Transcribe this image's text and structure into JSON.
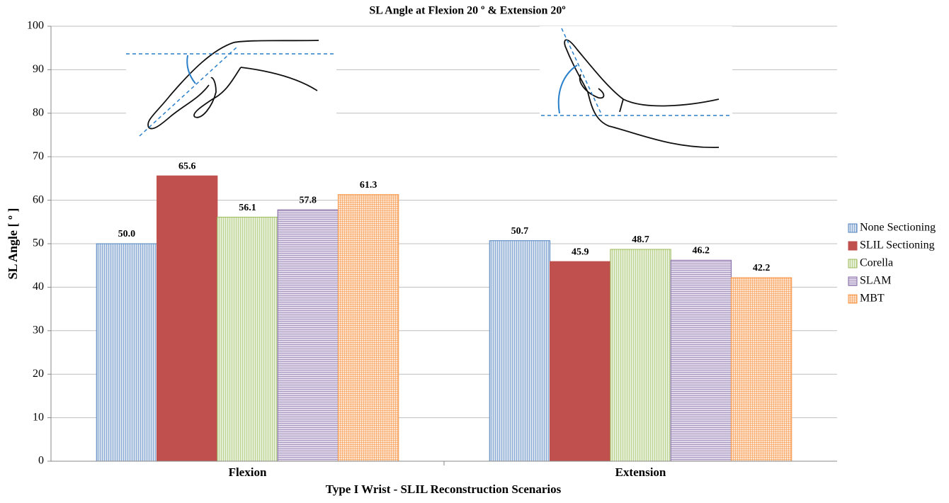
{
  "chart_data": {
    "type": "bar",
    "title": "SL Angle at Flexion 20 º & Extension 20º",
    "x_label": "Type I Wrist - SLIL Reconstruction Scenarios",
    "y_label": "SL Angle [ º ]",
    "categories": [
      "Flexion",
      "Extension"
    ],
    "series": [
      {
        "name": "None Sectioning",
        "color": "#4f81bd",
        "pattern": "vertical",
        "values": [
          50.0,
          50.7
        ],
        "value_labels": [
          "50.0",
          "50.7"
        ]
      },
      {
        "name": "SLIL Sectioning",
        "color": "#c0504d",
        "pattern": "solid",
        "values": [
          65.6,
          45.9
        ],
        "value_labels": [
          "65.6",
          "45.9"
        ]
      },
      {
        "name": "Corella",
        "color": "#9bbb59",
        "pattern": "vertical",
        "values": [
          56.1,
          48.7
        ],
        "value_labels": [
          "56.1",
          "48.7"
        ]
      },
      {
        "name": "SLAM",
        "color": "#8064a2",
        "pattern": "horizontal",
        "values": [
          57.8,
          46.2
        ],
        "value_labels": [
          "57.8",
          "46.2"
        ]
      },
      {
        "name": "MBT",
        "color": "#f79646",
        "pattern": "cross",
        "values": [
          61.3,
          42.2
        ],
        "value_labels": [
          "61.3",
          "42.2"
        ]
      }
    ],
    "ylim": [
      0,
      100
    ],
    "yticks": [
      0,
      10,
      20,
      30,
      40,
      50,
      60,
      70,
      80,
      90,
      100
    ],
    "grid": true,
    "legend": "right"
  }
}
